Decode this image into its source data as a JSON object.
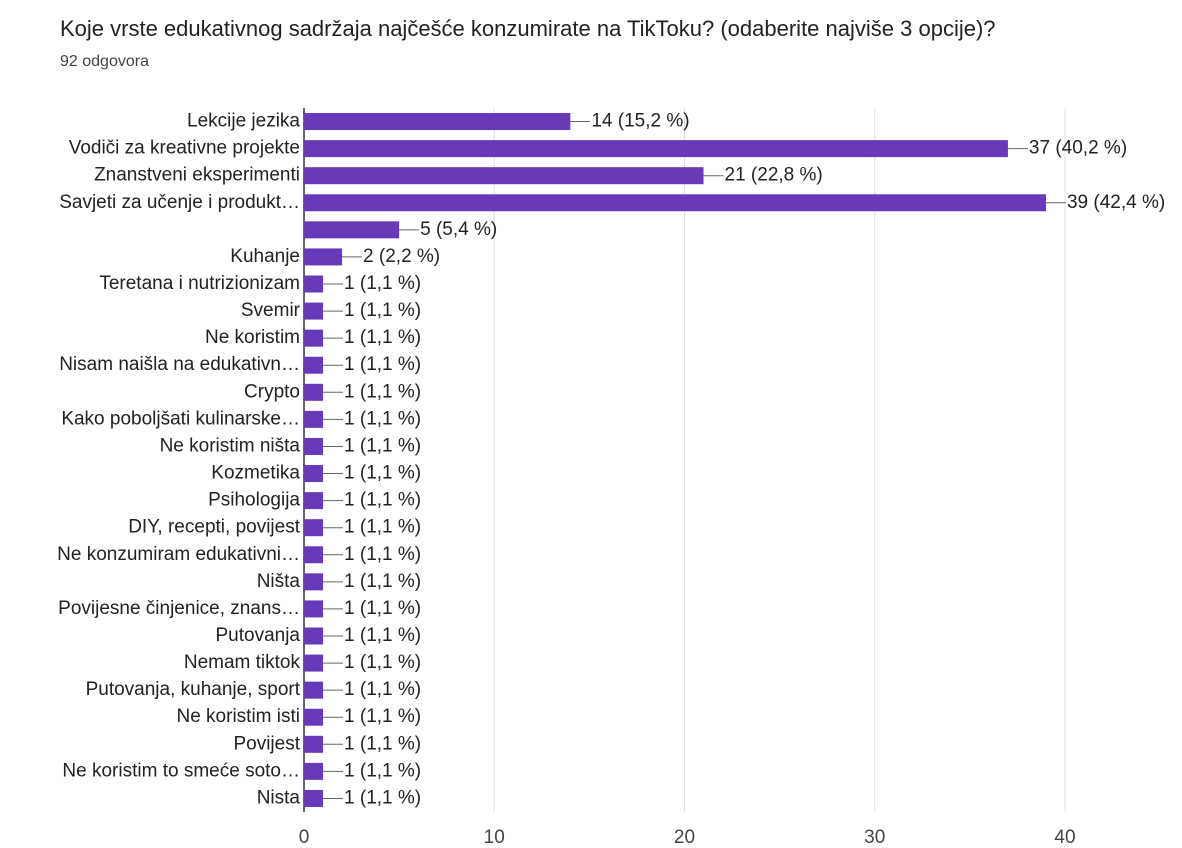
{
  "chart_data": {
    "type": "bar",
    "orientation": "horizontal",
    "title": "Koje vrste edukativnog sadržaja najčešće konzumirate na TikToku? (odaberite najviše 3 opcije)?",
    "subtitle": "92 odgovora",
    "categories": [
      "Lekcije jezika",
      "Vodiči za kreativne projekte",
      "Znanstveni eksperimenti",
      "Savjeti za učenje i produkt…",
      null,
      "Kuhanje",
      "Teretana i nutrizionizam",
      "Svemir",
      "Ne koristim",
      "Nisam naišla na edukativn…",
      "Crypto",
      "Kako poboljšati kulinarske…",
      "Ne koristim ništa",
      "Kozmetika",
      "Psihologija",
      "DIY, recepti, povijest",
      "Ne konzumiram edukativni…",
      "Ništa",
      "Povijesne činjenice, znans…",
      "Putovanja",
      "Nemam tiktok",
      "Putovanja, kuhanje, sport",
      "Ne koristim isti",
      "Povijest",
      "Ne koristim to smeće soto…",
      "Nista"
    ],
    "values": [
      14,
      37,
      21,
      39,
      5,
      2,
      1,
      1,
      1,
      1,
      1,
      1,
      1,
      1,
      1,
      1,
      1,
      1,
      1,
      1,
      1,
      1,
      1,
      1,
      1,
      1
    ],
    "value_labels": [
      "14 (15,2 %)",
      "37 (40,2 %)",
      "21 (22,8 %)",
      "39 (42,4 %)",
      "5 (5,4 %)",
      "2 (2,2 %)",
      "1 (1,1 %)",
      "1 (1,1 %)",
      "1 (1,1 %)",
      "1 (1,1 %)",
      "1 (1,1 %)",
      "1 (1,1 %)",
      "1 (1,1 %)",
      "1 (1,1 %)",
      "1 (1,1 %)",
      "1 (1,1 %)",
      "1 (1,1 %)",
      "1 (1,1 %)",
      "1 (1,1 %)",
      "1 (1,1 %)",
      "1 (1,1 %)",
      "1 (1,1 %)",
      "1 (1,1 %)",
      "1 (1,1 %)",
      "1 (1,1 %)",
      "1 (1,1 %)"
    ],
    "color": "#673ab7",
    "xlim": [
      0,
      40
    ],
    "xticks": [
      0,
      10,
      20,
      30,
      40
    ],
    "grid": true
  }
}
